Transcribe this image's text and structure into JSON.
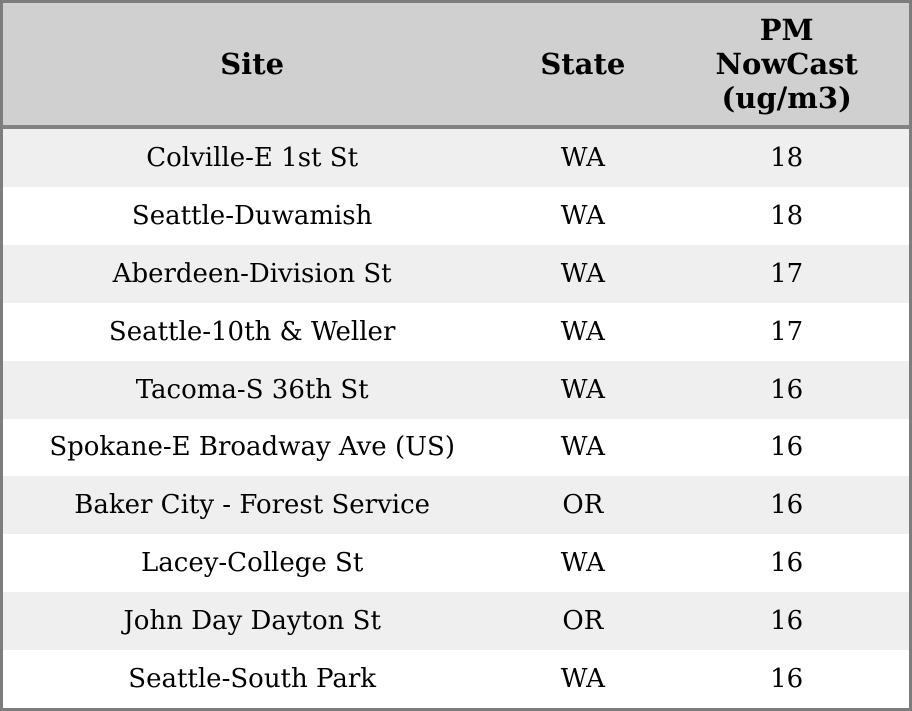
{
  "colors": {
    "outer_border": "#7d7d7d",
    "header_bg": "#d0d0d0",
    "header_separator": "#828282",
    "row_stripe": "#efefef",
    "row_bg": "#ffffff",
    "text": "#000000"
  },
  "chart_data": {
    "type": "table",
    "columns": [
      "Site",
      "State",
      "PM NowCast (ug/m3)"
    ],
    "pm_header_lines": [
      "PM",
      "NowCast",
      "(ug/m3)"
    ],
    "rows": [
      [
        "Colville-E 1st St",
        "WA",
        18
      ],
      [
        "Seattle-Duwamish",
        "WA",
        18
      ],
      [
        "Aberdeen-Division St",
        "WA",
        17
      ],
      [
        "Seattle-10th & Weller",
        "WA",
        17
      ],
      [
        "Tacoma-S 36th St",
        "WA",
        16
      ],
      [
        "Spokane-E Broadway Ave (US)",
        "WA",
        16
      ],
      [
        "Baker City - Forest Service",
        "OR",
        16
      ],
      [
        "Lacey-College St",
        "WA",
        16
      ],
      [
        "John Day Dayton St",
        "OR",
        16
      ],
      [
        "Seattle-South Park",
        "WA",
        16
      ]
    ]
  }
}
